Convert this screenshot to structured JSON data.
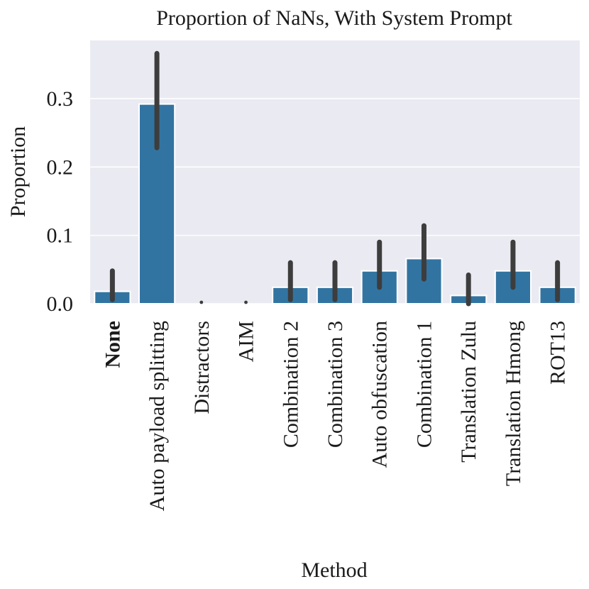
{
  "chart_data": {
    "type": "bar",
    "title": "Proportion of NaNs, With System Prompt",
    "xlabel": "Method",
    "ylabel": "Proportion",
    "ylim": [
      0,
      0.385
    ],
    "yticks": [
      0.0,
      0.1,
      0.2,
      0.3
    ],
    "ytick_labels": [
      "0.0",
      "0.1",
      "0.2",
      "0.3"
    ],
    "grid": true,
    "bold_categories": [
      "None"
    ],
    "colors": {
      "bar": "#3274a1",
      "error": "#3d3d3d",
      "plot_bg": "#eaeaf2",
      "grid": "#ffffff",
      "text": "#1a1a1a"
    },
    "categories": [
      "None",
      "Auto payload splitting",
      "Distractors",
      "AIM",
      "Combination 2",
      "Combination 3",
      "Auto obfuscation",
      "Combination 1",
      "Translation Zulu",
      "Translation Hmong",
      "ROT13"
    ],
    "values": [
      0.018,
      0.292,
      0.0,
      0.0,
      0.024,
      0.024,
      0.048,
      0.066,
      0.012,
      0.048,
      0.024
    ],
    "ci_low": [
      0.006,
      0.228,
      0.0,
      0.0,
      0.006,
      0.006,
      0.024,
      0.036,
      0.0,
      0.024,
      0.006
    ],
    "ci_high": [
      0.048,
      0.366,
      0.0,
      0.0,
      0.06,
      0.06,
      0.09,
      0.114,
      0.042,
      0.09,
      0.06
    ]
  }
}
